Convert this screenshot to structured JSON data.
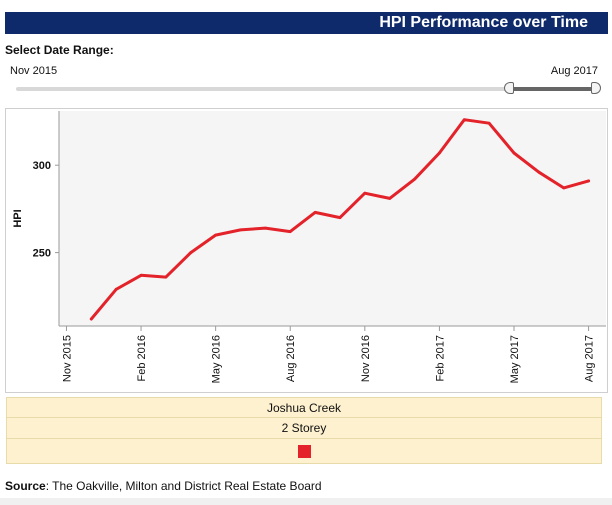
{
  "header": {
    "title": "HPI Performance over Time"
  },
  "date_range": {
    "label": "Select Date Range:",
    "start_label": "Nov 2015",
    "end_label": "Aug 2017",
    "selected_start": 0.85,
    "selected_end": 1.0
  },
  "legend": {
    "region": "Joshua Creek",
    "housing_type": "2 Storey",
    "swatch_color": "#e3222a"
  },
  "source": {
    "label": "Source",
    "text": ": The Oakville, Milton and District Real Estate Board"
  },
  "chart_data": {
    "type": "line",
    "title": "HPI Performance over Time",
    "xlabel": "",
    "ylabel": "HPI",
    "xlim": [
      -0.3,
      21.7
    ],
    "ylim": [
      208,
      331
    ],
    "yticks": [
      250,
      300
    ],
    "x_ticks": [
      {
        "label": "Nov 2015",
        "x": 0
      },
      {
        "label": "Feb 2016",
        "x": 3
      },
      {
        "label": "May 2016",
        "x": 6
      },
      {
        "label": "Aug 2016",
        "x": 9
      },
      {
        "label": "Nov 2016",
        "x": 12
      },
      {
        "label": "Feb 2017",
        "x": 15
      },
      {
        "label": "May 2017",
        "x": 18
      },
      {
        "label": "Aug 2017",
        "x": 21
      }
    ],
    "grid": false,
    "series": [
      {
        "name": "Joshua Creek",
        "color": "#e3222a",
        "points": [
          [
            1,
            212
          ],
          [
            2,
            229
          ],
          [
            3,
            237
          ],
          [
            4,
            236
          ],
          [
            5,
            250
          ],
          [
            6,
            260
          ],
          [
            7,
            263
          ],
          [
            8,
            264
          ],
          [
            9,
            262
          ],
          [
            10,
            273
          ],
          [
            11,
            270
          ],
          [
            12,
            284
          ],
          [
            13,
            281
          ],
          [
            14,
            292
          ],
          [
            15,
            307
          ],
          [
            16,
            326
          ],
          [
            17,
            324
          ],
          [
            18,
            307
          ],
          [
            19,
            296
          ],
          [
            20,
            287
          ],
          [
            21,
            291
          ]
        ]
      }
    ]
  }
}
